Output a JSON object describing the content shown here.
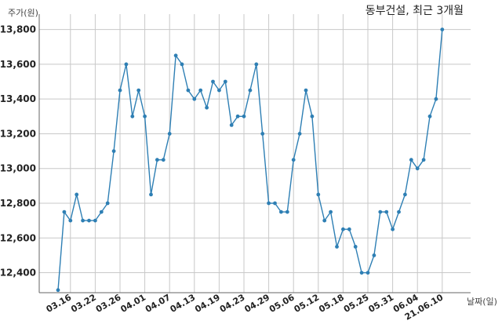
{
  "chart_data": {
    "type": "line",
    "title": "동부건설, 최근 3개월",
    "ylabel": "주가(원)",
    "xlabel": "날짜(일)",
    "ylim": [
      12250,
      13900
    ],
    "yticks": [
      12400,
      12600,
      12800,
      13000,
      13200,
      13400,
      13600,
      13800
    ],
    "ytick_labels": [
      "12,400",
      "12,600",
      "12,800",
      "13,000",
      "13,200",
      "13,400",
      "13,600",
      "13,800"
    ],
    "xtick_labels": [
      "03.16",
      "03.22",
      "03.26",
      "04.01",
      "04.07",
      "04.13",
      "04.19",
      "04.23",
      "04.29",
      "05.06",
      "05.12",
      "05.18",
      "05.25",
      "05.31",
      "06.04",
      "21.06.10"
    ],
    "xtick_indices": [
      2,
      6,
      10,
      14,
      18,
      22,
      26,
      30,
      34,
      38,
      42,
      46,
      50,
      54,
      58,
      62
    ],
    "grid": true,
    "line_color": "#2e7fb4",
    "series": [
      {
        "values": [
          12300,
          12750,
          12700,
          12850,
          12700,
          12700,
          12700,
          12750,
          12800,
          13100,
          13450,
          13600,
          13300,
          13450,
          13300,
          12850,
          13050,
          13050,
          13200,
          13650,
          13600,
          13450,
          13400,
          13450,
          13350,
          13500,
          13450,
          13500,
          13250,
          13300,
          13300,
          13450,
          13600,
          13200,
          12800,
          12800,
          12750,
          12750,
          13050,
          13200,
          13450,
          13300,
          12850,
          12700,
          12750,
          12550,
          12650,
          12650,
          12550,
          12400,
          12400,
          12500,
          12750,
          12750,
          12650,
          12750,
          12850,
          13050,
          13000,
          13050,
          13300,
          13400,
          13800
        ]
      }
    ]
  }
}
